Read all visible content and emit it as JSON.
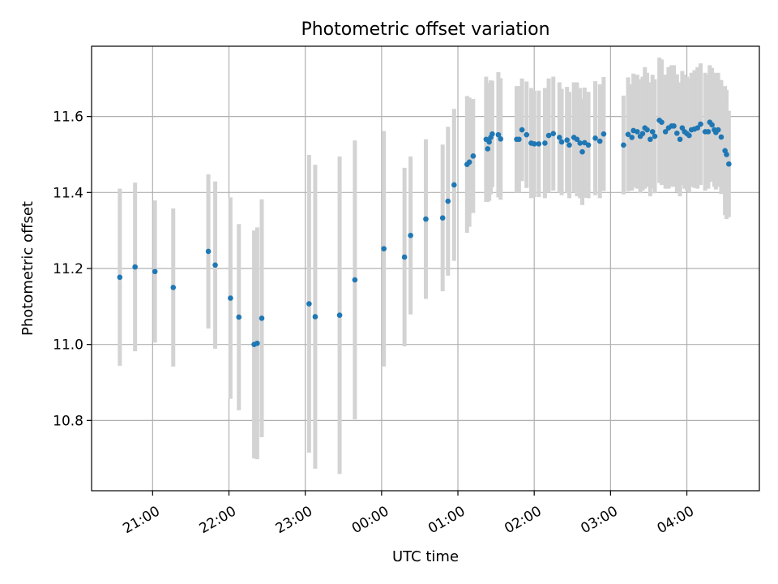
{
  "chart_data": {
    "type": "scatter",
    "title": "Photometric offset variation",
    "xlabel": "UTC time",
    "ylabel": "Photometric offset",
    "xlim": [
      -3.8,
      4.95
    ],
    "ylim": [
      10.615,
      11.785
    ],
    "grid": true,
    "x_tick_values": [
      -3,
      -2,
      -1,
      0,
      1,
      2,
      3,
      4
    ],
    "x_tick_labels": [
      "21:00",
      "22:00",
      "23:00",
      "00:00",
      "01:00",
      "02:00",
      "03:00",
      "04:00"
    ],
    "y_tick_values": [
      10.8,
      11.0,
      11.2,
      11.4,
      11.6
    ],
    "y_tick_labels": [
      "10.8",
      "11.0",
      "11.2",
      "11.4",
      "11.6"
    ],
    "colors": {
      "point": "#1f77b4",
      "errorbar": "#d3d3d3",
      "grid": "#b0b0b0"
    },
    "series": [
      {
        "points": [
          [
            -3.43,
            11.177,
            0.233
          ],
          [
            -3.23,
            11.204,
            0.222
          ],
          [
            -2.97,
            11.192,
            0.187
          ],
          [
            -2.73,
            11.15,
            0.208
          ],
          [
            -2.27,
            11.245,
            0.203
          ],
          [
            -2.18,
            11.209,
            0.22
          ],
          [
            -1.98,
            11.122,
            0.265
          ],
          [
            -1.87,
            11.072,
            0.245
          ],
          [
            -1.67,
            11.0,
            0.3
          ],
          [
            -1.63,
            11.003,
            0.305
          ],
          [
            -1.57,
            11.069,
            0.313
          ],
          [
            -0.95,
            11.107,
            0.392
          ],
          [
            -0.87,
            11.073,
            0.4
          ],
          [
            -0.55,
            11.077,
            0.418
          ],
          [
            -0.35,
            11.17,
            0.367
          ],
          [
            0.03,
            11.252,
            0.31
          ],
          [
            0.3,
            11.23,
            0.235
          ],
          [
            0.38,
            11.287,
            0.208
          ],
          [
            0.58,
            11.33,
            0.21
          ],
          [
            0.8,
            11.333,
            0.193
          ],
          [
            0.87,
            11.377,
            0.196
          ],
          [
            0.95,
            11.42,
            0.2
          ],
          [
            1.12,
            11.474,
            0.18
          ],
          [
            1.15,
            11.48,
            0.17
          ],
          [
            1.2,
            11.496,
            0.15
          ],
          [
            1.37,
            11.54,
            0.165
          ],
          [
            1.39,
            11.515,
            0.14
          ],
          [
            1.41,
            11.533,
            0.155
          ],
          [
            1.43,
            11.545,
            0.15
          ],
          [
            1.45,
            11.554,
            0.14
          ],
          [
            1.53,
            11.552,
            0.165
          ],
          [
            1.56,
            11.541,
            0.16
          ],
          [
            1.77,
            11.54,
            0.14
          ],
          [
            1.8,
            11.54,
            0.14
          ],
          [
            1.84,
            11.565,
            0.135
          ],
          [
            1.9,
            11.552,
            0.14
          ],
          [
            1.96,
            11.53,
            0.145
          ],
          [
            2.0,
            11.528,
            0.14
          ],
          [
            2.06,
            11.528,
            0.14
          ],
          [
            2.14,
            11.53,
            0.145
          ],
          [
            2.19,
            11.55,
            0.15
          ],
          [
            2.25,
            11.555,
            0.15
          ],
          [
            2.33,
            11.545,
            0.145
          ],
          [
            2.36,
            11.533,
            0.14
          ],
          [
            2.43,
            11.538,
            0.14
          ],
          [
            2.46,
            11.525,
            0.14
          ],
          [
            2.52,
            11.545,
            0.145
          ],
          [
            2.56,
            11.54,
            0.15
          ],
          [
            2.6,
            11.53,
            0.145
          ],
          [
            2.63,
            11.507,
            0.14
          ],
          [
            2.66,
            11.531,
            0.145
          ],
          [
            2.71,
            11.525,
            0.14
          ],
          [
            2.8,
            11.543,
            0.15
          ],
          [
            2.86,
            11.535,
            0.15
          ],
          [
            2.91,
            11.554,
            0.15
          ],
          [
            3.17,
            11.525,
            0.13
          ],
          [
            3.23,
            11.553,
            0.15
          ],
          [
            3.28,
            11.545,
            0.14
          ],
          [
            3.3,
            11.563,
            0.15
          ],
          [
            3.35,
            11.56,
            0.15
          ],
          [
            3.39,
            11.548,
            0.15
          ],
          [
            3.42,
            11.555,
            0.15
          ],
          [
            3.45,
            11.57,
            0.16
          ],
          [
            3.48,
            11.565,
            0.15
          ],
          [
            3.52,
            11.54,
            0.15
          ],
          [
            3.55,
            11.56,
            0.15
          ],
          [
            3.58,
            11.548,
            0.15
          ],
          [
            3.64,
            11.59,
            0.165
          ],
          [
            3.67,
            11.585,
            0.165
          ],
          [
            3.72,
            11.56,
            0.15
          ],
          [
            3.76,
            11.57,
            0.16
          ],
          [
            3.8,
            11.575,
            0.16
          ],
          [
            3.83,
            11.575,
            0.16
          ],
          [
            3.87,
            11.556,
            0.155
          ],
          [
            3.91,
            11.54,
            0.15
          ],
          [
            3.94,
            11.57,
            0.15
          ],
          [
            3.97,
            11.56,
            0.15
          ],
          [
            4.0,
            11.555,
            0.15
          ],
          [
            4.03,
            11.55,
            0.15
          ],
          [
            4.06,
            11.565,
            0.15
          ],
          [
            4.1,
            11.567,
            0.155
          ],
          [
            4.14,
            11.57,
            0.16
          ],
          [
            4.18,
            11.58,
            0.16
          ],
          [
            4.24,
            11.56,
            0.155
          ],
          [
            4.28,
            11.56,
            0.15
          ],
          [
            4.3,
            11.585,
            0.15
          ],
          [
            4.33,
            11.578,
            0.15
          ],
          [
            4.36,
            11.565,
            0.15
          ],
          [
            4.38,
            11.558,
            0.15
          ],
          [
            4.41,
            11.565,
            0.15
          ],
          [
            4.45,
            11.546,
            0.15
          ],
          [
            4.5,
            11.51,
            0.17
          ],
          [
            4.52,
            11.5,
            0.17
          ],
          [
            4.55,
            11.475,
            0.14
          ]
        ]
      }
    ]
  }
}
